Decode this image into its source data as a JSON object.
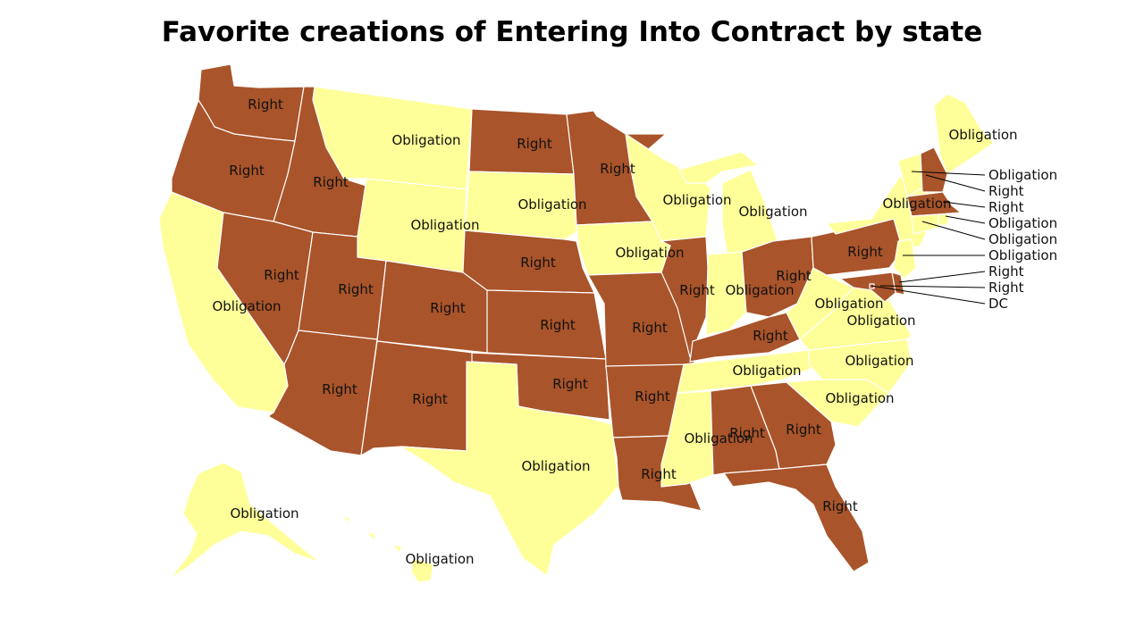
{
  "title": "Favorite creations of Entering Into Contract by state",
  "colors": {
    "Right": "#a9542a",
    "Obligation": "#ffff99",
    "border": "#ffffff"
  },
  "states": [
    {
      "code": "WA",
      "value": "Right"
    },
    {
      "code": "OR",
      "value": "Right"
    },
    {
      "code": "CA",
      "value": "Obligation"
    },
    {
      "code": "ID",
      "value": "Right"
    },
    {
      "code": "NV",
      "value": "Right"
    },
    {
      "code": "MT",
      "value": "Obligation"
    },
    {
      "code": "WY",
      "value": "Obligation"
    },
    {
      "code": "UT",
      "value": "Right"
    },
    {
      "code": "AZ",
      "value": "Right"
    },
    {
      "code": "CO",
      "value": "Right"
    },
    {
      "code": "NM",
      "value": "Right"
    },
    {
      "code": "ND",
      "value": "Right"
    },
    {
      "code": "SD",
      "value": "Obligation"
    },
    {
      "code": "NE",
      "value": "Right"
    },
    {
      "code": "KS",
      "value": "Right"
    },
    {
      "code": "OK",
      "value": "Right"
    },
    {
      "code": "TX",
      "value": "Obligation"
    },
    {
      "code": "MN",
      "value": "Right"
    },
    {
      "code": "IA",
      "value": "Obligation"
    },
    {
      "code": "MO",
      "value": "Right"
    },
    {
      "code": "AR",
      "value": "Right"
    },
    {
      "code": "LA",
      "value": "Right"
    },
    {
      "code": "WI",
      "value": "Obligation"
    },
    {
      "code": "IL",
      "value": "Right"
    },
    {
      "code": "MI",
      "value": "Obligation"
    },
    {
      "code": "IN",
      "value": "Obligation"
    },
    {
      "code": "OH",
      "value": "Right"
    },
    {
      "code": "KY",
      "value": "Right"
    },
    {
      "code": "TN",
      "value": "Obligation"
    },
    {
      "code": "MS",
      "value": "Obligation"
    },
    {
      "code": "AL",
      "value": "Right"
    },
    {
      "code": "GA",
      "value": "Right"
    },
    {
      "code": "FL",
      "value": "Right"
    },
    {
      "code": "SC",
      "value": "Obligation"
    },
    {
      "code": "NC",
      "value": "Obligation"
    },
    {
      "code": "VA",
      "value": "Obligation"
    },
    {
      "code": "WV",
      "value": "Obligation"
    },
    {
      "code": "PA",
      "value": "Right"
    },
    {
      "code": "NY",
      "value": "Obligation"
    },
    {
      "code": "ME",
      "value": "Obligation"
    },
    {
      "code": "VT",
      "value": "Obligation"
    },
    {
      "code": "NH",
      "value": "Right"
    },
    {
      "code": "MA",
      "value": "Right"
    },
    {
      "code": "RI",
      "value": "Obligation"
    },
    {
      "code": "CT",
      "value": "Obligation"
    },
    {
      "code": "NJ",
      "value": "Obligation"
    },
    {
      "code": "DE",
      "value": "Right"
    },
    {
      "code": "MD",
      "value": "Right"
    },
    {
      "code": "DC",
      "value": "Right"
    },
    {
      "code": "AK",
      "value": "Obligation"
    },
    {
      "code": "HI",
      "value": "Obligation"
    }
  ],
  "callouts": [
    {
      "code": "VT",
      "text": "Obligation"
    },
    {
      "code": "NH",
      "text": "Right"
    },
    {
      "code": "MA",
      "text": "Right"
    },
    {
      "code": "RI",
      "text": "Obligation"
    },
    {
      "code": "CT",
      "text": "Obligation"
    },
    {
      "code": "NJ",
      "text": "Obligation"
    },
    {
      "code": "DE",
      "text": "Right"
    },
    {
      "code": "MD",
      "text": "Right"
    },
    {
      "code": "DC",
      "text": "DC"
    }
  ]
}
